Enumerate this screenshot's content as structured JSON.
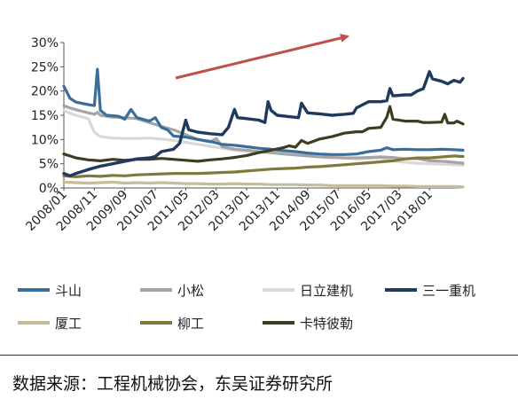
{
  "chart_data": {
    "type": "line",
    "title": "",
    "xlabel": "",
    "ylabel": "",
    "x_start": "2008/01",
    "x_end": "2018/12",
    "x_tick_labels": [
      "2008/01",
      "2008/11",
      "2009/09",
      "2010/07",
      "2011/05",
      "2012/03",
      "2013/01",
      "2013/11",
      "2014/09",
      "2015/07",
      "2016/05",
      "2017/03",
      "2018/01"
    ],
    "y_tick_labels": [
      "0%",
      "5%",
      "10%",
      "15%",
      "20%",
      "25%",
      "30%"
    ],
    "ylim": [
      0,
      30
    ],
    "grid": false,
    "legend_position": "bottom",
    "annotation": "upward arrow",
    "series": [
      {
        "name": "斗山",
        "color": "#3b6d9c",
        "width": 3.2,
        "points": [
          [
            0,
            21
          ],
          [
            2,
            18.5
          ],
          [
            4,
            17.7
          ],
          [
            8,
            17.2
          ],
          [
            10,
            17
          ],
          [
            11,
            24.5
          ],
          [
            12,
            16
          ],
          [
            14,
            15
          ],
          [
            18,
            14.8
          ],
          [
            20,
            14.2
          ],
          [
            22,
            16.2
          ],
          [
            24,
            14.5
          ],
          [
            28,
            13.8
          ],
          [
            30,
            14.5
          ],
          [
            32,
            12.5
          ],
          [
            34,
            12
          ],
          [
            36,
            10.7
          ],
          [
            40,
            10.5
          ],
          [
            44,
            10
          ],
          [
            48,
            9.6
          ],
          [
            52,
            9
          ],
          [
            56,
            8.8
          ],
          [
            60,
            8.5
          ],
          [
            64,
            8.2
          ],
          [
            68,
            8
          ],
          [
            72,
            7.7
          ],
          [
            76,
            7.5
          ],
          [
            80,
            7.2
          ],
          [
            84,
            7
          ],
          [
            88,
            6.9
          ],
          [
            92,
            6.9
          ],
          [
            96,
            7
          ],
          [
            100,
            7.5
          ],
          [
            104,
            7.8
          ],
          [
            106,
            8.3
          ],
          [
            108,
            7.9
          ],
          [
            112,
            8
          ],
          [
            116,
            7.9
          ],
          [
            120,
            7.9
          ],
          [
            124,
            8
          ],
          [
            128,
            7.9
          ],
          [
            131,
            7.8
          ]
        ]
      },
      {
        "name": "小松",
        "color": "#a5a5a5",
        "width": 3.2,
        "points": [
          [
            0,
            17
          ],
          [
            2,
            16.5
          ],
          [
            6,
            15.8
          ],
          [
            10,
            15.2
          ],
          [
            11,
            15.6
          ],
          [
            12,
            15
          ],
          [
            16,
            14.6
          ],
          [
            20,
            14.5
          ],
          [
            24,
            14.3
          ],
          [
            28,
            13.5
          ],
          [
            32,
            12.7
          ],
          [
            36,
            12
          ],
          [
            40,
            11
          ],
          [
            44,
            10
          ],
          [
            48,
            9.5
          ],
          [
            50,
            10.2
          ],
          [
            52,
            8.5
          ],
          [
            56,
            8
          ],
          [
            60,
            7.8
          ],
          [
            64,
            7.5
          ],
          [
            68,
            7.3
          ],
          [
            72,
            7
          ],
          [
            76,
            6.8
          ],
          [
            80,
            6.6
          ],
          [
            84,
            6.4
          ],
          [
            88,
            6.3
          ],
          [
            92,
            6.2
          ],
          [
            96,
            6.2
          ],
          [
            100,
            6.3
          ],
          [
            104,
            6.4
          ],
          [
            108,
            6.3
          ],
          [
            112,
            6
          ],
          [
            116,
            6.1
          ],
          [
            120,
            5.6
          ],
          [
            124,
            5.5
          ],
          [
            128,
            5.3
          ],
          [
            131,
            5.1
          ]
        ]
      },
      {
        "name": "日立建机",
        "color": "#d9d9d9",
        "width": 3.2,
        "points": [
          [
            0,
            16
          ],
          [
            2,
            15.4
          ],
          [
            4,
            15
          ],
          [
            8,
            14.3
          ],
          [
            10,
            11.5
          ],
          [
            12,
            10.6
          ],
          [
            16,
            10.3
          ],
          [
            20,
            10.2
          ],
          [
            24,
            10.2
          ],
          [
            28,
            10.3
          ],
          [
            32,
            10.1
          ],
          [
            36,
            9.8
          ],
          [
            40,
            9.4
          ],
          [
            44,
            9
          ],
          [
            48,
            8.6
          ],
          [
            52,
            8.2
          ],
          [
            56,
            7.8
          ],
          [
            60,
            7.6
          ],
          [
            64,
            7.4
          ],
          [
            68,
            7.3
          ],
          [
            72,
            7.2
          ],
          [
            76,
            7.1
          ],
          [
            80,
            7
          ],
          [
            84,
            6.9
          ],
          [
            88,
            6.5
          ],
          [
            92,
            6.2
          ],
          [
            96,
            6
          ],
          [
            100,
            6.1
          ],
          [
            104,
            6.2
          ],
          [
            108,
            5.6
          ],
          [
            112,
            5.3
          ],
          [
            116,
            5.1
          ],
          [
            120,
            5
          ],
          [
            124,
            4.9
          ],
          [
            128,
            4.8
          ],
          [
            131,
            4.7
          ]
        ]
      },
      {
        "name": "三一重机",
        "color": "#1f3a5f",
        "width": 3.4,
        "points": [
          [
            0,
            3
          ],
          [
            2,
            2.5
          ],
          [
            4,
            3
          ],
          [
            8,
            3.8
          ],
          [
            12,
            4.5
          ],
          [
            16,
            5
          ],
          [
            20,
            5.5
          ],
          [
            24,
            6
          ],
          [
            28,
            6.2
          ],
          [
            30,
            6.5
          ],
          [
            32,
            7.5
          ],
          [
            36,
            8
          ],
          [
            38,
            9.2
          ],
          [
            40,
            14
          ],
          [
            41,
            12
          ],
          [
            44,
            11.5
          ],
          [
            48,
            11.2
          ],
          [
            52,
            11
          ],
          [
            54,
            12.5
          ],
          [
            56,
            16.2
          ],
          [
            57,
            14.5
          ],
          [
            60,
            14.3
          ],
          [
            64,
            14
          ],
          [
            66,
            13.5
          ],
          [
            67,
            17.8
          ],
          [
            68,
            16
          ],
          [
            70,
            15
          ],
          [
            74,
            14.7
          ],
          [
            77,
            14.5
          ],
          [
            78,
            17.5
          ],
          [
            80,
            15.5
          ],
          [
            84,
            15.3
          ],
          [
            88,
            15
          ],
          [
            92,
            15.2
          ],
          [
            95,
            15.4
          ],
          [
            96,
            16.5
          ],
          [
            100,
            17.8
          ],
          [
            104,
            17.8
          ],
          [
            106,
            18
          ],
          [
            107,
            20.5
          ],
          [
            108,
            19
          ],
          [
            112,
            19.2
          ],
          [
            114,
            19.2
          ],
          [
            116,
            20
          ],
          [
            118,
            20.5
          ],
          [
            120,
            24
          ],
          [
            121,
            22.5
          ],
          [
            124,
            22
          ],
          [
            126,
            21.5
          ],
          [
            128,
            22.2
          ],
          [
            130,
            21.8
          ],
          [
            131,
            22.6
          ]
        ]
      },
      {
        "name": "厦工",
        "color": "#c4bd97",
        "width": 3.2,
        "points": [
          [
            0,
            1.2
          ],
          [
            4,
            1.1
          ],
          [
            8,
            1
          ],
          [
            12,
            1.1
          ],
          [
            16,
            1.2
          ],
          [
            20,
            1
          ],
          [
            24,
            1.1
          ],
          [
            28,
            1
          ],
          [
            32,
            1.1
          ],
          [
            36,
            1
          ],
          [
            40,
            0.9
          ],
          [
            44,
            0.9
          ],
          [
            48,
            0.8
          ],
          [
            52,
            0.8
          ],
          [
            56,
            0.9
          ],
          [
            60,
            0.8
          ],
          [
            64,
            0.8
          ],
          [
            68,
            0.7
          ],
          [
            72,
            0.7
          ],
          [
            76,
            0.7
          ],
          [
            80,
            0.6
          ],
          [
            84,
            0.6
          ],
          [
            88,
            0.5
          ],
          [
            92,
            0.5
          ],
          [
            96,
            0.5
          ],
          [
            100,
            0.5
          ],
          [
            104,
            0.5
          ],
          [
            108,
            0.4
          ],
          [
            112,
            0.4
          ],
          [
            116,
            0.3
          ],
          [
            120,
            0.3
          ],
          [
            124,
            0.3
          ],
          [
            128,
            0.3
          ],
          [
            131,
            0.2
          ]
        ]
      },
      {
        "name": "柳工",
        "color": "#7f7a3c",
        "width": 3.2,
        "points": [
          [
            0,
            2.5
          ],
          [
            4,
            2.3
          ],
          [
            8,
            2.5
          ],
          [
            12,
            2.4
          ],
          [
            16,
            2.6
          ],
          [
            20,
            2.5
          ],
          [
            24,
            2.7
          ],
          [
            28,
            2.8
          ],
          [
            32,
            2.9
          ],
          [
            36,
            3
          ],
          [
            40,
            3
          ],
          [
            44,
            3
          ],
          [
            48,
            3.1
          ],
          [
            52,
            3.2
          ],
          [
            56,
            3.3
          ],
          [
            60,
            3.5
          ],
          [
            64,
            3.7
          ],
          [
            68,
            3.9
          ],
          [
            72,
            4
          ],
          [
            76,
            4.1
          ],
          [
            80,
            4.3
          ],
          [
            84,
            4.4
          ],
          [
            88,
            4.6
          ],
          [
            92,
            4.8
          ],
          [
            96,
            5
          ],
          [
            100,
            5.2
          ],
          [
            104,
            5.4
          ],
          [
            108,
            5.6
          ],
          [
            112,
            6
          ],
          [
            116,
            6.2
          ],
          [
            120,
            6.2
          ],
          [
            124,
            6.4
          ],
          [
            128,
            6.6
          ],
          [
            131,
            6.5
          ]
        ]
      },
      {
        "name": "卡特彼勒",
        "color": "#3d3d1f",
        "width": 3.2,
        "points": [
          [
            0,
            7
          ],
          [
            2,
            6.6
          ],
          [
            4,
            6.2
          ],
          [
            8,
            5.8
          ],
          [
            12,
            5.6
          ],
          [
            16,
            5.9
          ],
          [
            20,
            5.7
          ],
          [
            24,
            5.9
          ],
          [
            28,
            5.9
          ],
          [
            32,
            6.1
          ],
          [
            36,
            5.9
          ],
          [
            40,
            5.7
          ],
          [
            44,
            5.5
          ],
          [
            48,
            5.8
          ],
          [
            52,
            6
          ],
          [
            56,
            6.3
          ],
          [
            60,
            6.7
          ],
          [
            64,
            7.3
          ],
          [
            68,
            7.8
          ],
          [
            72,
            8.3
          ],
          [
            74,
            8.7
          ],
          [
            76,
            8.4
          ],
          [
            78,
            9.8
          ],
          [
            80,
            9.2
          ],
          [
            84,
            10.1
          ],
          [
            88,
            10.6
          ],
          [
            92,
            11.3
          ],
          [
            96,
            11.6
          ],
          [
            98,
            11.6
          ],
          [
            100,
            12.3
          ],
          [
            104,
            12.5
          ],
          [
            106,
            14.6
          ],
          [
            107,
            16.8
          ],
          [
            108,
            14.2
          ],
          [
            112,
            13.8
          ],
          [
            116,
            13.8
          ],
          [
            118,
            13.5
          ],
          [
            120,
            13.5
          ],
          [
            124,
            13.6
          ],
          [
            125,
            15.2
          ],
          [
            126,
            13.4
          ],
          [
            128,
            13.4
          ],
          [
            129,
            13.8
          ],
          [
            131,
            13.2
          ]
        ]
      }
    ]
  },
  "source": {
    "text": "数据来源：工程机械协会，东吴证券研究所"
  }
}
